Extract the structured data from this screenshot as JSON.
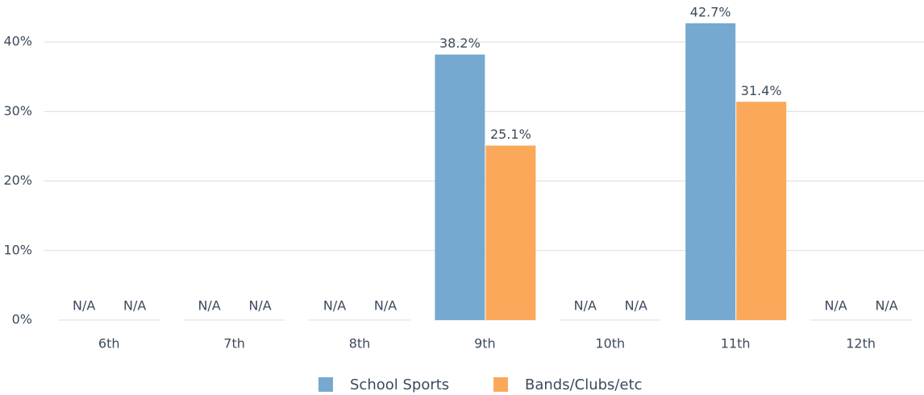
{
  "chart_data": {
    "type": "bar",
    "categories": [
      "6th",
      "7th",
      "8th",
      "9th",
      "10th",
      "11th",
      "12th"
    ],
    "series": [
      {
        "name": "School Sports",
        "color": "#75a9cf",
        "values": [
          null,
          null,
          null,
          38.2,
          null,
          42.7,
          null
        ],
        "value_labels": [
          "N/A",
          "N/A",
          "N/A",
          "38.2%",
          "N/A",
          "42.7%",
          "N/A"
        ]
      },
      {
        "name": "Bands/Clubs/etc",
        "color": "#fba85a",
        "values": [
          null,
          null,
          null,
          25.1,
          null,
          31.4,
          null
        ],
        "value_labels": [
          "N/A",
          "N/A",
          "N/A",
          "25.1%",
          "N/A",
          "31.4%",
          "N/A"
        ]
      }
    ],
    "ylim": [
      0,
      45
    ],
    "yticks": [
      {
        "value": 0,
        "label": "0%"
      },
      {
        "value": 10,
        "label": "10%"
      },
      {
        "value": 20,
        "label": "20%"
      },
      {
        "value": 30,
        "label": "30%"
      },
      {
        "value": 40,
        "label": "40%"
      }
    ],
    "grid": true,
    "legend": "bottom"
  }
}
